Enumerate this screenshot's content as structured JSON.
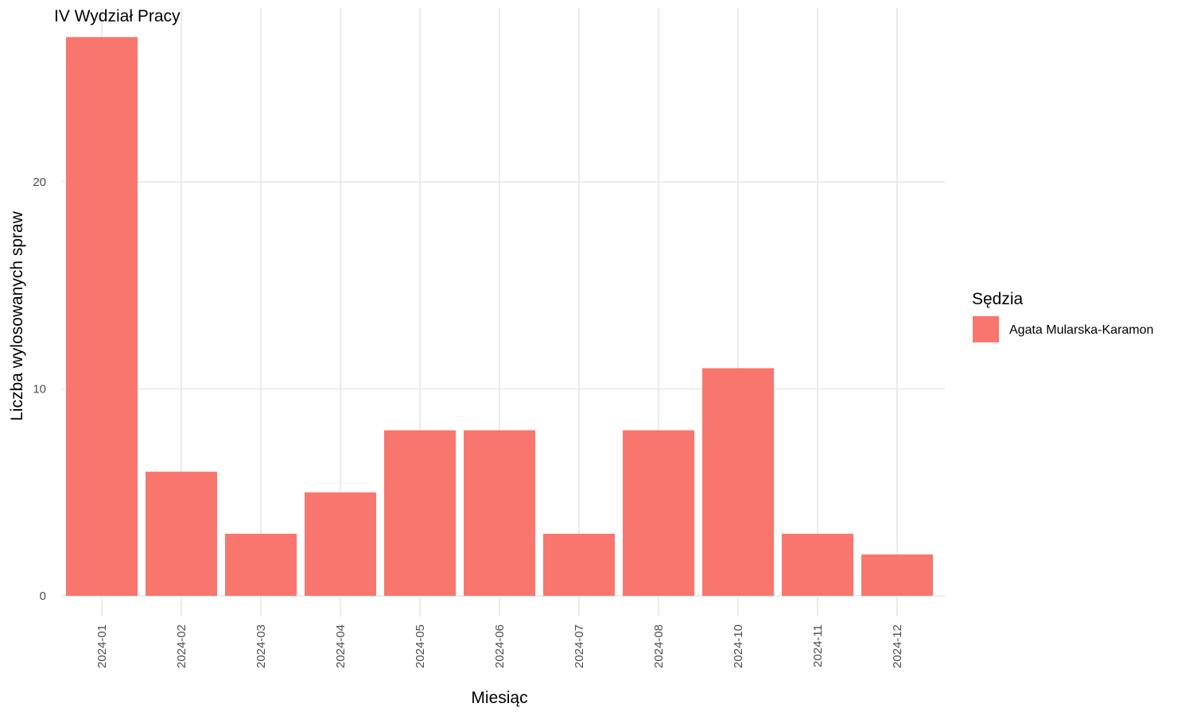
{
  "chart_data": {
    "type": "bar",
    "title": "IV Wydział Pracy",
    "xlabel": "Miesiąc",
    "ylabel": "Liczba wylosowanych spraw",
    "categories": [
      "2024-01",
      "2024-02",
      "2024-03",
      "2024-04",
      "2024-05",
      "2024-06",
      "2024-07",
      "2024-08",
      "2024-10",
      "2024-11",
      "2024-12"
    ],
    "series": [
      {
        "name": "Agata Mularska-Karamon",
        "values": [
          27,
          6,
          3,
          5,
          8,
          8,
          3,
          8,
          11,
          3,
          2
        ],
        "color": "#F8766D"
      }
    ],
    "ylim": [
      0,
      28.4
    ],
    "yticks": [
      0,
      10,
      20
    ],
    "grid": true,
    "legend": {
      "title": "Sędzia",
      "position": "right"
    }
  }
}
